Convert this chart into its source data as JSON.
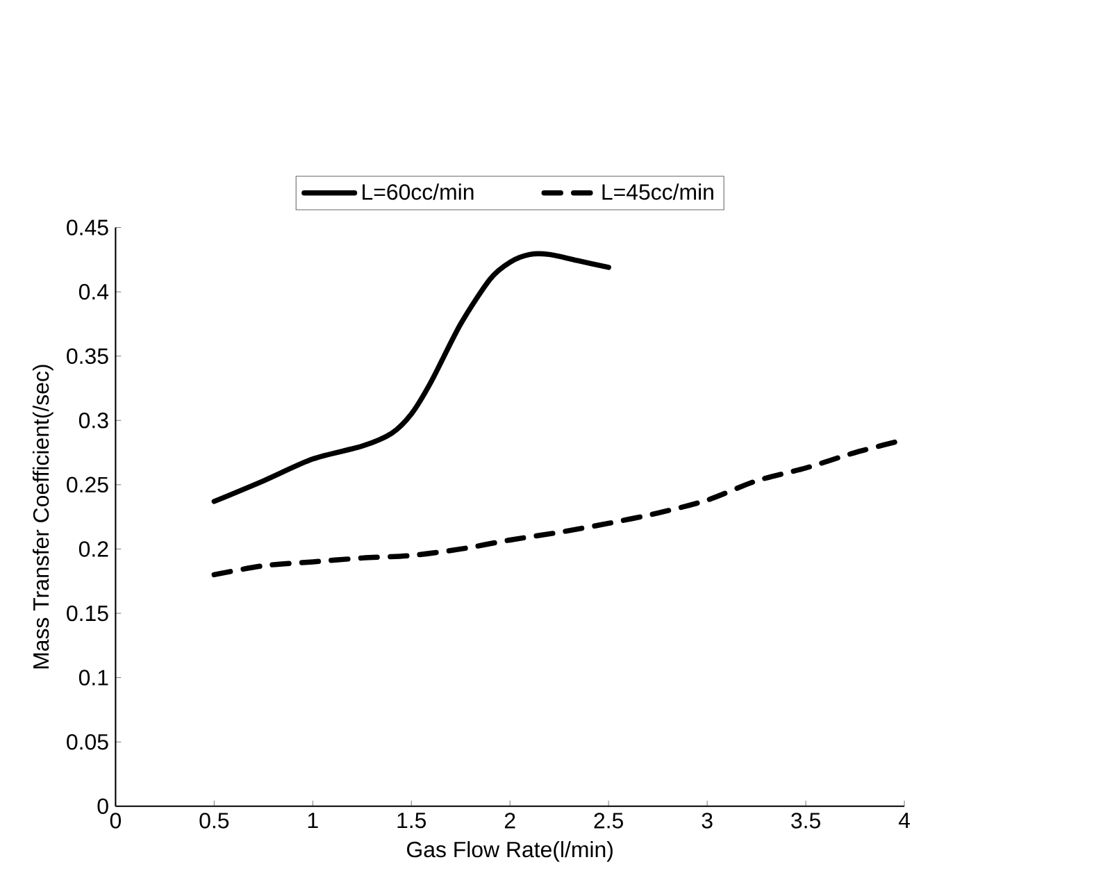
{
  "chart_data": {
    "type": "line",
    "xlabel": "Gas Flow Rate(l/min)",
    "ylabel": "Mass Transfer Coefficient(/sec)",
    "xlim": [
      0,
      4
    ],
    "xticks": [
      0,
      0.5,
      1,
      1.5,
      2,
      2.5,
      3,
      3.5,
      4
    ],
    "ylim": [
      0,
      0.45
    ],
    "yticks": [
      0,
      0.05,
      0.1,
      0.15,
      0.2,
      0.25,
      0.3,
      0.35,
      0.4,
      0.45
    ],
    "legend": "top",
    "grid": false,
    "marker": "none",
    "series": [
      {
        "name": "L=60cc/min",
        "color": "#000000",
        "line_style": "solid",
        "x": [
          0.5,
          0.75,
          1.0,
          1.25,
          1.4,
          1.5,
          1.6,
          1.75,
          1.9,
          2.0,
          2.1,
          2.2,
          2.35,
          2.5
        ],
        "values": [
          0.237,
          0.253,
          0.27,
          0.28,
          0.29,
          0.305,
          0.33,
          0.375,
          0.41,
          0.423,
          0.429,
          0.429,
          0.424,
          0.419
        ]
      },
      {
        "name": "L=45cc/min",
        "color": "#000000",
        "line_style": "dashed",
        "x": [
          0.5,
          0.75,
          1.0,
          1.25,
          1.5,
          1.75,
          2.0,
          2.25,
          2.5,
          2.75,
          3.0,
          3.25,
          3.5,
          3.75,
          4.0
        ],
        "values": [
          0.18,
          0.187,
          0.19,
          0.193,
          0.195,
          0.2,
          0.207,
          0.213,
          0.22,
          0.228,
          0.238,
          0.253,
          0.263,
          0.275,
          0.285
        ]
      }
    ]
  }
}
